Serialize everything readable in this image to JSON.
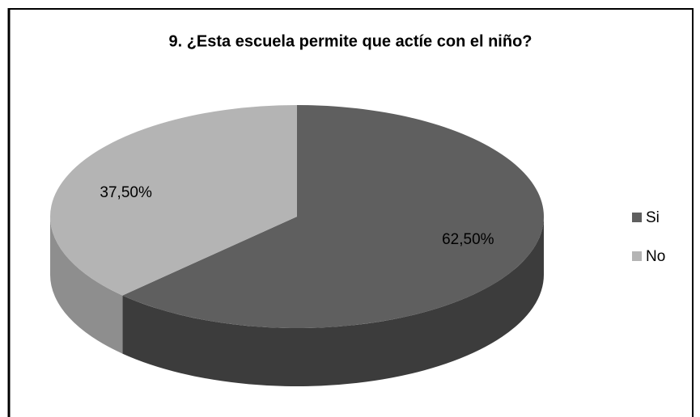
{
  "chart_data": {
    "type": "pie",
    "title": "9. ¿Esta escuela permite  que  actíe  con el niño?",
    "categories": [
      "Si",
      "No"
    ],
    "values": [
      62.5,
      37.5
    ],
    "value_labels": [
      "62,50%",
      "37,50%"
    ],
    "colors": [
      "#5f5f5f",
      "#b4b4b4"
    ],
    "side_colors": [
      "#3c3c3c",
      "#8e8e8e"
    ],
    "legend": "right"
  }
}
